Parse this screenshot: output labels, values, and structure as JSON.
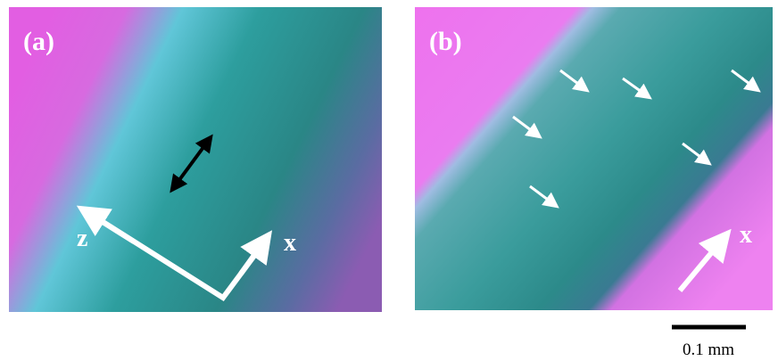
{
  "panels": [
    {
      "label": "(a)",
      "axis_labels": [
        "z",
        "x"
      ]
    },
    {
      "label": "(b)",
      "axis_labels": [
        "x"
      ]
    }
  ],
  "scale_bar": {
    "label": "0.1 mm"
  }
}
